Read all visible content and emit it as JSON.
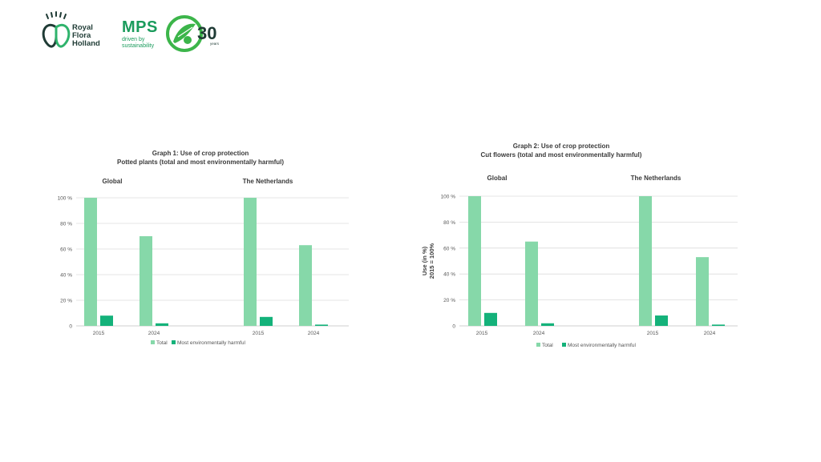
{
  "logos": {
    "rfh": {
      "line1": "Royal",
      "line2": "Flora",
      "line3": "Holland"
    },
    "mps": {
      "title": "MPS",
      "sub1": "driven by",
      "sub2": "sustainability"
    },
    "anniversary": {
      "number": "30",
      "label": "years"
    }
  },
  "colors": {
    "total": "#86d8a9",
    "harmful": "#14b27a",
    "grid": "#dcdcdc"
  },
  "chart_data": [
    {
      "type": "bar",
      "title": "Graph 1: Use of crop protection",
      "subtitle": "Potted plants (total and most environmentally harmful)",
      "panels": [
        "Global",
        "The Netherlands"
      ],
      "categories": [
        "2015",
        "2024",
        "2015",
        "2024"
      ],
      "series": [
        {
          "name": "Total",
          "values": [
            100,
            70,
            100,
            63
          ]
        },
        {
          "name": "Most environmentally harmful",
          "values": [
            8,
            2,
            7,
            1
          ]
        }
      ],
      "yticks": [
        "0",
        "20 %",
        "40 %",
        "60 %",
        "80 %",
        "100 %"
      ],
      "ylim": [
        0,
        100
      ],
      "ylabel": "",
      "grid": true,
      "legend": "bottom"
    },
    {
      "type": "bar",
      "title": "Graph 2: Use of crop protection",
      "subtitle": "Cut flowers (total and most environmentally harmful)",
      "panels": [
        "Global",
        "The Netherlands"
      ],
      "categories": [
        "2015",
        "2024",
        "2015",
        "2024"
      ],
      "series": [
        {
          "name": "Total",
          "values": [
            100,
            65,
            100,
            53
          ]
        },
        {
          "name": "Most environmentally harmful",
          "values": [
            10,
            2,
            8,
            1
          ]
        }
      ],
      "yticks": [
        "0",
        "20 %",
        "40 %",
        "60 %",
        "80 %",
        "100 %"
      ],
      "ylim": [
        0,
        100
      ],
      "ylabel": "Use (in %)",
      "ylabel2": "2015 = 100%",
      "grid": true,
      "legend": "bottom"
    }
  ]
}
